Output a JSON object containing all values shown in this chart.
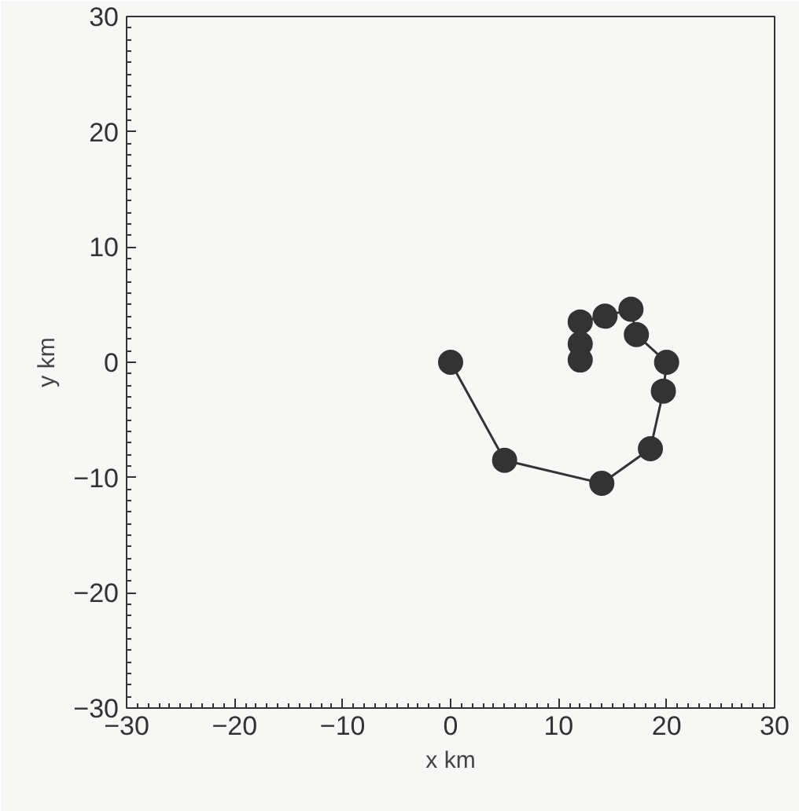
{
  "chart_data": {
    "type": "line",
    "xlabel": "x km",
    "ylabel": "y km",
    "x": [
      0,
      5,
      14,
      18.5,
      19.7,
      20,
      17.2,
      16.7,
      14.3,
      12,
      12,
      12
    ],
    "series": [
      {
        "color": "#333333",
        "values": [
          0,
          -8.5,
          -10.5,
          -7.5,
          -2.5,
          0,
          2.4,
          4.6,
          4,
          3.5,
          1.6,
          0.2
        ]
      }
    ],
    "xlim": [
      -30,
      30
    ],
    "ylim": [
      -30,
      30
    ],
    "xticks": [
      -30,
      -20,
      -10,
      0,
      10,
      20,
      30
    ],
    "yticks": [
      -30,
      -20,
      -10,
      0,
      10,
      20,
      30
    ],
    "grid": false,
    "marker": "circle",
    "line_style": "solid"
  }
}
